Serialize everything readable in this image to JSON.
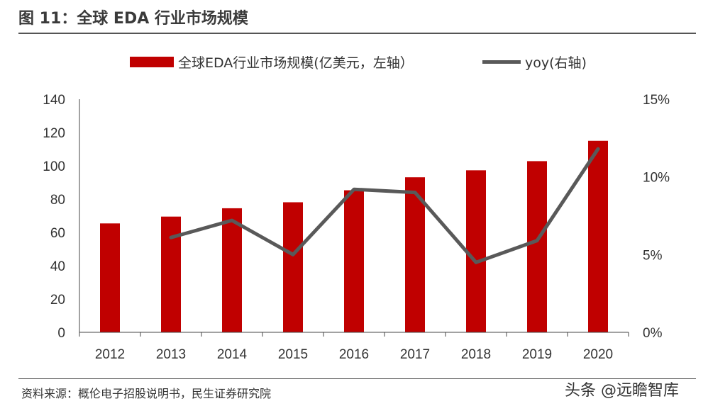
{
  "figure": {
    "title": "图 11：全球 EDA 行业市场规模",
    "source": "资料来源：概伦电子招股说明书，民生证券研究院",
    "watermark": "头条 @远瞻智库"
  },
  "colors": {
    "bar": "#C00000",
    "line": "#595959",
    "axis": "#444444",
    "rule": "#555555"
  },
  "chart_data": {
    "type": "bar",
    "categories": [
      "2012",
      "2013",
      "2014",
      "2015",
      "2016",
      "2017",
      "2018",
      "2019",
      "2020"
    ],
    "series": [
      {
        "name": "全球EDA行业市场规模(亿美元，左轴）",
        "type": "bar",
        "axis": "left",
        "values": [
          65.4,
          69.5,
          74.5,
          78.1,
          85.3,
          93.1,
          97.3,
          102.8,
          115.0
        ]
      },
      {
        "name": "yoy(右轴)",
        "type": "line",
        "axis": "right",
        "values": [
          null,
          6.1,
          7.2,
          5.0,
          9.2,
          9.0,
          4.5,
          5.9,
          11.8
        ]
      }
    ],
    "y_left": {
      "ylim": [
        0,
        140
      ],
      "ticks": [
        0,
        20,
        40,
        60,
        80,
        100,
        120,
        140
      ]
    },
    "y_right": {
      "ylim": [
        0,
        15
      ],
      "ticks": [
        "0%",
        "5%",
        "10%",
        "15%"
      ],
      "tick_values": [
        0,
        5,
        10,
        15
      ]
    },
    "legend_position": "top-center",
    "grid": false
  }
}
